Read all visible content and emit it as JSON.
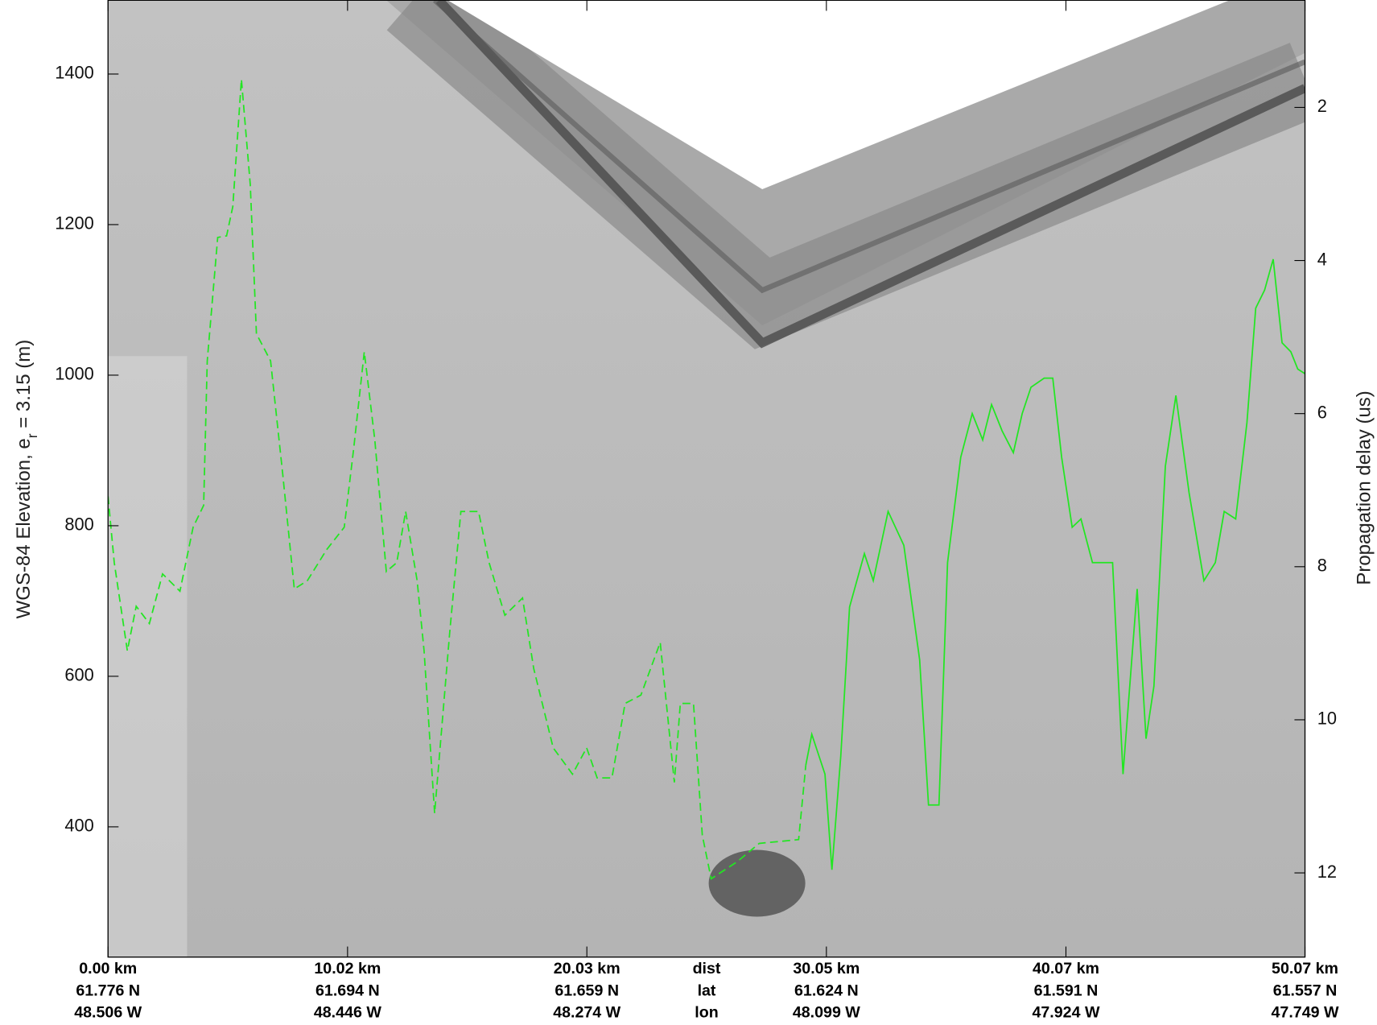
{
  "chart_data": {
    "type": "line",
    "ylabel": "WGS-84 Elevation, e",
    "ylabel_sub": "r",
    "ylabel_tail": " = 3.15 (m)",
    "y2label": "Propagation delay (us)",
    "xlim": [
      0,
      50.07
    ],
    "xticks": [
      {
        "value": 0,
        "label": "0.00 km"
      },
      {
        "value": 10.02,
        "label": "10.02 km"
      },
      {
        "value": 20.03,
        "label": "20.03 km"
      },
      {
        "value": 30.05,
        "label": "30.05 km"
      },
      {
        "value": 40.07,
        "label": "40.07 km"
      },
      {
        "value": 50.07,
        "label": "50.07 km"
      }
    ],
    "xtick_lat": [
      "61.776 N",
      "61.694 N",
      "61.659 N",
      "61.624 N",
      "61.591 N",
      "61.557 N"
    ],
    "xtick_lon": [
      "48.506 W",
      "48.446 W",
      "48.274 W",
      "48.099 W",
      "47.924 W",
      "47.749 W"
    ],
    "row_labels": [
      "dist",
      "lat",
      "lon"
    ],
    "ylim": [
      227,
      1498
    ],
    "yticks": [
      400,
      600,
      800,
      1000,
      1200,
      1400
    ],
    "y2lim": [
      13.1,
      0.6
    ],
    "y2ticks": [
      2,
      4,
      6,
      8,
      10,
      12
    ],
    "series": [
      {
        "color": "#22e622",
        "dash": true,
        "x": [
          0,
          0.26,
          0.81,
          1.18,
          1.73,
          2.28,
          3.01,
          3.56,
          4.0,
          4.15,
          4.59,
          4.96,
          5.22,
          5.58,
          5.95,
          6.21,
          6.8,
          7.31,
          7.79,
          8.34,
          9.14,
          9.88,
          10.28,
          10.72,
          11.16,
          11.64,
          12.08,
          12.45,
          12.93,
          13.22,
          13.66,
          14.29,
          14.76,
          15.5,
          15.94,
          16.6,
          17.34,
          17.81,
          18.62,
          19.43,
          20.02,
          20.46,
          21.08,
          21.63,
          22.29,
          23.1,
          23.69,
          23.94,
          24.49,
          24.86,
          25.23,
          26.33,
          27.24,
          28.89,
          29.19
        ],
        "values": [
          839,
          751,
          634,
          693,
          670,
          736,
          713,
          798,
          827,
          1019,
          1183,
          1185,
          1224,
          1393,
          1253,
          1055,
          1019,
          868,
          716,
          727,
          768,
          798,
          903,
          1031,
          914,
          739,
          751,
          819,
          727,
          634,
          418,
          657,
          819,
          819,
          751,
          681,
          704,
          610,
          505,
          470,
          505,
          465,
          465,
          564,
          575,
          645,
          459,
          564,
          564,
          389,
          331,
          354,
          378,
          383,
          482
        ]
      },
      {
        "color": "#22e622",
        "dash": false,
        "x": [
          29.19,
          29.44,
          29.99,
          30.28,
          30.65,
          31.02,
          31.64,
          32.01,
          32.63,
          33.29,
          33.95,
          34.32,
          34.76,
          35.12,
          35.67,
          36.15,
          36.59,
          36.96,
          37.4,
          37.87,
          38.24,
          38.61,
          39.16,
          39.52,
          39.89,
          40.33,
          40.7,
          41.18,
          42.02,
          42.46,
          43.05,
          43.42,
          43.75,
          44.23,
          44.67,
          45.22,
          45.84,
          46.32,
          46.69,
          47.17,
          47.64,
          48.01,
          48.38,
          48.74,
          49.11,
          49.48,
          49.77,
          50.07
        ],
        "values": [
          482,
          523,
          470,
          343,
          494,
          692,
          763,
          727,
          819,
          774,
          622,
          429,
          429,
          751,
          891,
          949,
          914,
          961,
          926,
          897,
          949,
          984,
          996,
          996,
          891,
          798,
          809,
          751,
          751,
          470,
          716,
          517,
          587,
          879,
          973,
          844,
          727,
          751,
          819,
          809,
          937,
          1089,
          1113,
          1154,
          1043,
          1031,
          1008,
          1002
        ]
      }
    ]
  }
}
